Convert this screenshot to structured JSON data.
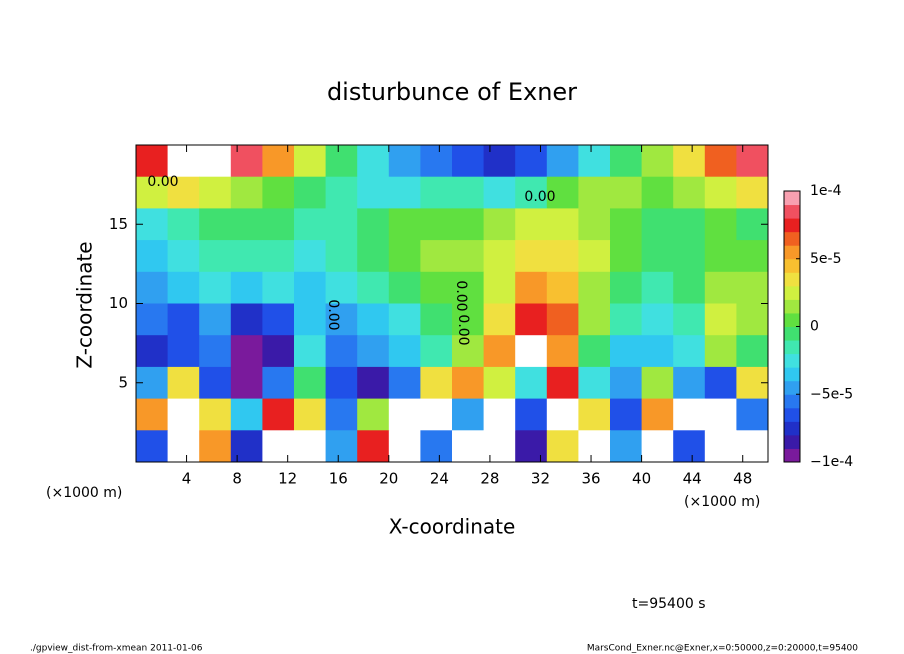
{
  "chart_data": {
    "type": "heatmap",
    "title": "disturbunce of Exner",
    "xlabel": "X-coordinate",
    "ylabel": "Z-coordinate",
    "xunit": "(×1000 m)",
    "xunit_right": "(×1000 m)",
    "time_label": "t=95400 s",
    "footer_left": "./gpview_dist-from-xmean  2011-01-06",
    "footer_right": "MarsCond_Exner.nc@Exner,x=0:50000,z=0:20000,t=95400",
    "contour_labels": [
      "0.00",
      "0.00",
      "0.00",
      "0.00",
      "0.00"
    ],
    "xlim": [
      0,
      50
    ],
    "xticks": [
      4,
      8,
      12,
      16,
      20,
      24,
      28,
      32,
      36,
      40,
      44,
      48
    ],
    "ylim": [
      0,
      20
    ],
    "yticks": [
      5,
      10,
      15
    ],
    "levels": [
      -0.0001,
      -9e-05,
      -8e-05,
      -7e-05,
      -6e-05,
      -5e-05,
      -4e-05,
      -3e-05,
      -2e-05,
      -1e-05,
      0,
      1e-05,
      2e-05,
      3e-05,
      4e-05,
      5e-05,
      6e-05,
      7e-05,
      8e-05,
      9e-05,
      0.0001
    ],
    "colors": [
      "#7a1a9c",
      "#3a1aa8",
      "#2030c8",
      "#2050e8",
      "#2878f0",
      "#30a0f0",
      "#30c8f0",
      "#40e0e0",
      "#40e8b0",
      "#40e070",
      "#60e040",
      "#a0e840",
      "#d0f040",
      "#f0e040",
      "#f8c030",
      "#f89828",
      "#f06020",
      "#e82020",
      "#f05060",
      "#f8a0b0"
    ],
    "out_of_range_color": "#ffffff",
    "cbticks": [
      {
        "value": -0.0001,
        "label": "−1e-4"
      },
      {
        "value": -5e-05,
        "label": "−5e-5"
      },
      0,
      {
        "value": 5e-05,
        "label": "5e-5"
      },
      {
        "value": 0.0001,
        "label": "1e-4"
      }
    ],
    "values": [
      [
        8e-05,
        0.00012,
        0.00015,
        9e-05,
        6e-05,
        3e-05,
        0,
        -2e-05,
        -4e-05,
        -5e-05,
        -6e-05,
        -7e-05,
        -6e-05,
        -4e-05,
        -2e-05,
        0,
        2e-05,
        4e-05,
        7e-05,
        9e-05
      ],
      [
        3e-05,
        4e-05,
        3e-05,
        2e-05,
        1e-05,
        0,
        -1e-05,
        -2e-05,
        -2e-05,
        -1e-05,
        -1e-05,
        -2e-05,
        -1e-05,
        1e-05,
        2e-05,
        2e-05,
        1e-05,
        2e-05,
        3e-05,
        4e-05
      ],
      [
        -2e-05,
        -1e-05,
        0,
        0,
        0,
        -1e-05,
        -1e-05,
        0,
        1e-05,
        1e-05,
        1e-05,
        2e-05,
        3e-05,
        3e-05,
        2e-05,
        1e-05,
        0,
        0,
        1e-05,
        0
      ],
      [
        -3e-05,
        -2e-05,
        -1e-05,
        -1e-05,
        -1e-05,
        -2e-05,
        -1e-05,
        0,
        1e-05,
        2e-05,
        2e-05,
        3e-05,
        4e-05,
        4e-05,
        3e-05,
        1e-05,
        0,
        0,
        1e-05,
        1e-05
      ],
      [
        -4e-05,
        -3e-05,
        -2e-05,
        -3e-05,
        -2e-05,
        -3e-05,
        -2e-05,
        -1e-05,
        0,
        1e-05,
        1e-05,
        3e-05,
        6e-05,
        5e-05,
        2e-05,
        0,
        -1e-05,
        0,
        2e-05,
        2e-05
      ],
      [
        -5e-05,
        -6e-05,
        -4e-05,
        -7e-05,
        -6e-05,
        -3e-05,
        -4e-05,
        -3e-05,
        -2e-05,
        0,
        1e-05,
        4e-05,
        8e-05,
        7e-05,
        2e-05,
        -1e-05,
        -2e-05,
        -1e-05,
        3e-05,
        2e-05
      ],
      [
        -7e-05,
        -6e-05,
        -5e-05,
        -9e-05,
        -8e-05,
        -2e-05,
        -5e-05,
        -4e-05,
        -3e-05,
        -1e-05,
        2e-05,
        6e-05,
        0.00011,
        6e-05,
        0,
        -3e-05,
        -3e-05,
        -2e-05,
        2e-05,
        0
      ],
      [
        -4e-05,
        4e-05,
        -6e-05,
        -9e-05,
        -5e-05,
        0,
        -6e-05,
        -8e-05,
        -5e-05,
        4e-05,
        6e-05,
        3e-05,
        -2e-05,
        8e-05,
        -2e-05,
        -4e-05,
        2e-05,
        -4e-05,
        -6e-05,
        4e-05
      ],
      [
        6e-05,
        0.00012,
        4e-05,
        -3e-05,
        8e-05,
        4e-05,
        -5e-05,
        2e-05,
        0.00011,
        0.00012,
        -4e-05,
        0.00013,
        -6e-05,
        0.00012,
        4e-05,
        -6e-05,
        6e-05,
        0.00012,
        0.00013,
        -5e-05
      ],
      [
        -6e-05,
        0.00012,
        6e-05,
        -7e-05,
        0.00012,
        0.00011,
        -4e-05,
        8e-05,
        0.00013,
        -5e-05,
        0.00014,
        0.00012,
        -8e-05,
        4e-05,
        0.00012,
        -4e-05,
        0.00013,
        -6e-05,
        0.00012,
        0.00014
      ]
    ]
  }
}
